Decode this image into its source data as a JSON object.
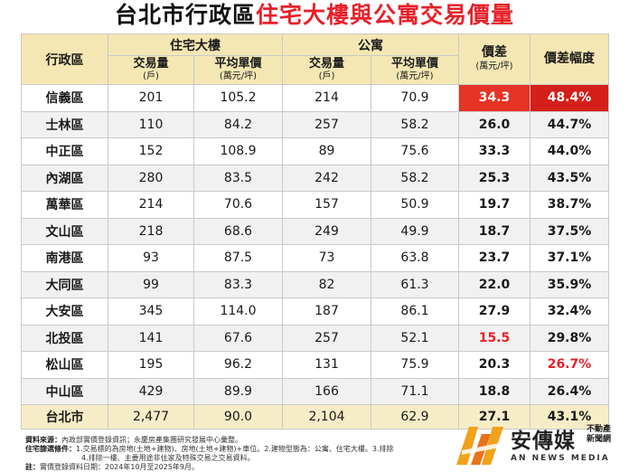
{
  "title": {
    "part1": "台北市行政區",
    "part2": "住宅大樓與公寓交易價量"
  },
  "header": {
    "district": "行政區",
    "building_group": "住宅大樓",
    "apartment_group": "公寓",
    "volume": "交易量",
    "volume_unit": "(戶)",
    "avg_price": "平均單價",
    "price_unit": "(萬元/坪)",
    "diff": "價差",
    "diff_unit": "(萬元/坪)",
    "diff_pct": "價差幅度"
  },
  "rows": [
    {
      "district": "信義區",
      "b_vol": "201",
      "b_price": "105.2",
      "a_vol": "214",
      "a_price": "70.9",
      "diff": "34.3",
      "pct": "48.4%"
    },
    {
      "district": "士林區",
      "b_vol": "110",
      "b_price": "84.2",
      "a_vol": "257",
      "a_price": "58.2",
      "diff": "26.0",
      "pct": "44.7%"
    },
    {
      "district": "中正區",
      "b_vol": "152",
      "b_price": "108.9",
      "a_vol": "89",
      "a_price": "75.6",
      "diff": "33.3",
      "pct": "44.0%"
    },
    {
      "district": "內湖區",
      "b_vol": "280",
      "b_price": "83.5",
      "a_vol": "242",
      "a_price": "58.2",
      "diff": "25.3",
      "pct": "43.5%"
    },
    {
      "district": "萬華區",
      "b_vol": "214",
      "b_price": "70.6",
      "a_vol": "157",
      "a_price": "50.9",
      "diff": "19.7",
      "pct": "38.7%"
    },
    {
      "district": "文山區",
      "b_vol": "218",
      "b_price": "68.6",
      "a_vol": "249",
      "a_price": "49.9",
      "diff": "18.7",
      "pct": "37.5%"
    },
    {
      "district": "南港區",
      "b_vol": "93",
      "b_price": "87.5",
      "a_vol": "73",
      "a_price": "63.8",
      "diff": "23.7",
      "pct": "37.1%"
    },
    {
      "district": "大同區",
      "b_vol": "99",
      "b_price": "83.3",
      "a_vol": "82",
      "a_price": "61.3",
      "diff": "22.0",
      "pct": "35.9%"
    },
    {
      "district": "大安區",
      "b_vol": "345",
      "b_price": "114.0",
      "a_vol": "187",
      "a_price": "86.1",
      "diff": "27.9",
      "pct": "32.4%"
    },
    {
      "district": "北投區",
      "b_vol": "141",
      "b_price": "67.6",
      "a_vol": "257",
      "a_price": "52.1",
      "diff": "15.5",
      "pct": "29.8%"
    },
    {
      "district": "松山區",
      "b_vol": "195",
      "b_price": "96.2",
      "a_vol": "131",
      "a_price": "75.9",
      "diff": "20.3",
      "pct": "26.7%"
    },
    {
      "district": "中山區",
      "b_vol": "429",
      "b_price": "89.9",
      "a_vol": "166",
      "a_price": "71.1",
      "diff": "18.8",
      "pct": "26.4%"
    }
  ],
  "total": {
    "district": "台北市",
    "b_vol": "2,477",
    "b_price": "90.0",
    "a_vol": "2,104",
    "a_price": "62.9",
    "diff": "27.1",
    "pct": "43.1%"
  },
  "notes": {
    "source_label": "資料來源：",
    "source_text": "內政部實價登錄資訊；永慶房產集團研究發展中心彙整。",
    "criteria_label": "住宅篩選條件：",
    "criteria_text": "1.交易標的為房地(土地+建物)、房地(土地+建物)+車位。2.建物型態為：公寓、住宅大樓。3.排除",
    "criteria_text2": "4.排除一樓、主要用途非住家及特殊交易之交易資料。",
    "note_label": "註：",
    "note_text": "實價登錄資料日期：2024年10月至2025年9月。"
  },
  "logo": {
    "name": "安傳媒",
    "tag1": "不動產",
    "tag2": "新聞網",
    "en": "AN NEWS MEDIA"
  },
  "colors": {
    "header_bg": "#f4e7b3",
    "total_bg": "#f6edc8",
    "accent_red": "#e8202a",
    "hot_red": "#e63325"
  }
}
